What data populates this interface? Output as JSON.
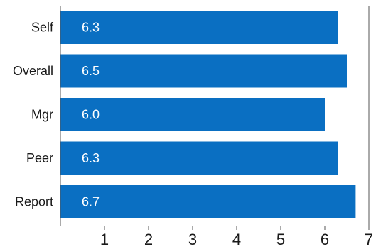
{
  "chart_data": {
    "type": "bar",
    "orientation": "horizontal",
    "categories": [
      "Self",
      "Overall",
      "Mgr",
      "Peer",
      "Report"
    ],
    "values": [
      6.3,
      6.5,
      6.0,
      6.3,
      6.7
    ],
    "data_labels": [
      "6.3",
      "6.5",
      "6.0",
      "6.3",
      "6.7"
    ],
    "xlim": [
      0,
      7
    ],
    "x_ticks": [
      1,
      2,
      3,
      4,
      5,
      6,
      7
    ],
    "x_tick_labels": [
      "1",
      "2",
      "3",
      "4",
      "5",
      "6",
      "7"
    ],
    "grid": false,
    "bar_color": "#0a6fc2",
    "label_color": "#ffffff",
    "axis_color": "#555555"
  }
}
